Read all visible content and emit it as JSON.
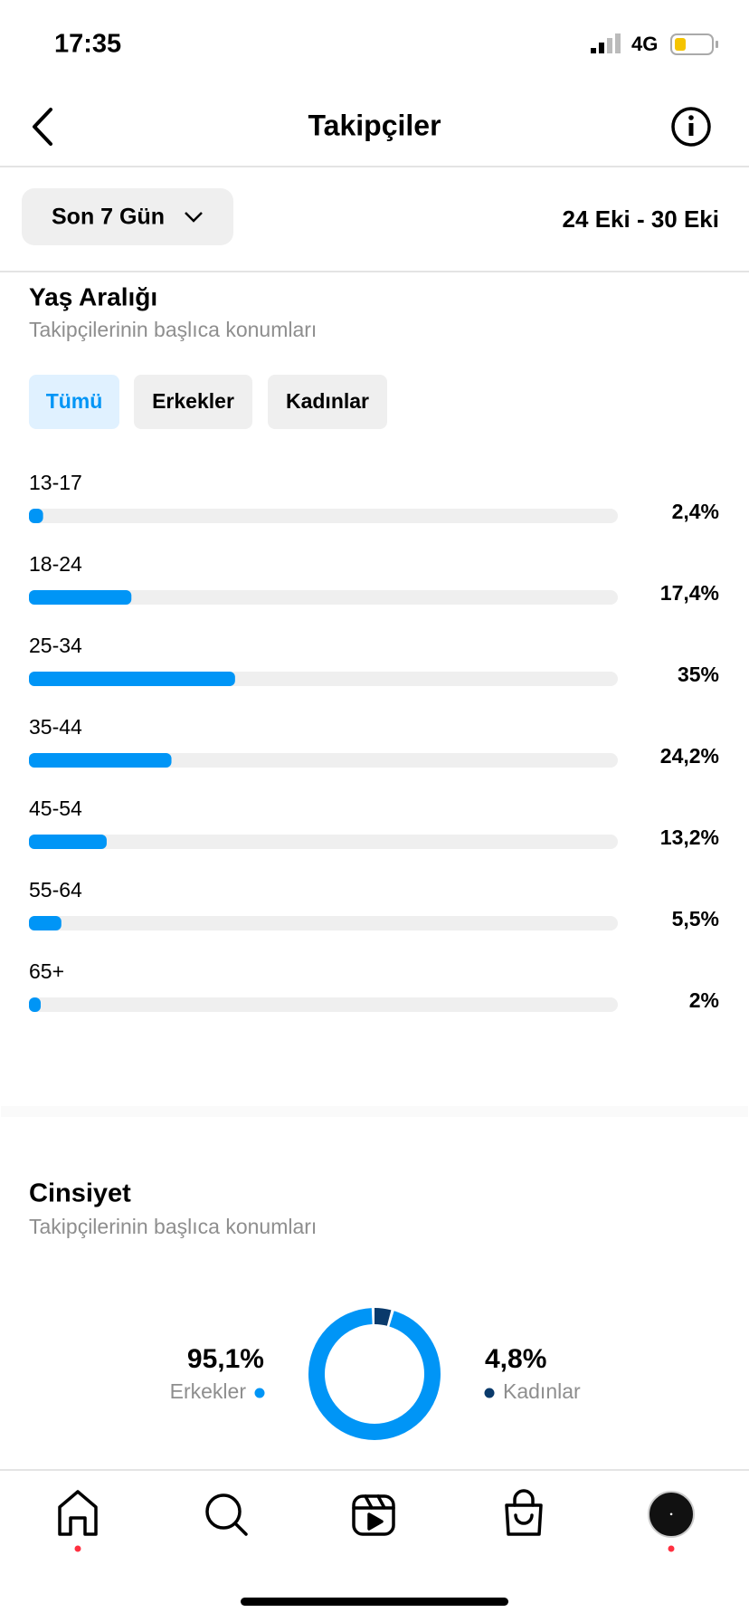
{
  "status_bar": {
    "time": "17:35",
    "network": "4G"
  },
  "header": {
    "title": "Takipçiler"
  },
  "filter": {
    "period": "Son 7 Gün",
    "date_range": "24 Eki - 30 Eki"
  },
  "age_range": {
    "title": "Yaş Aralığı",
    "subtitle": "Takipçilerinin başlıca konumları",
    "tabs": [
      "Tümü",
      "Erkekler",
      "Kadınlar"
    ],
    "categories": [
      "13-17",
      "18-24",
      "25-34",
      "35-44",
      "45-54",
      "55-64",
      "65+"
    ],
    "values": [
      2.4,
      17.4,
      35,
      24.2,
      13.2,
      5.5,
      2
    ],
    "value_labels": [
      "2,4%",
      "17,4%",
      "35%",
      "24,2%",
      "13,2%",
      "5,5%",
      "2%"
    ],
    "xlim": [
      0,
      100
    ],
    "color": "#0095f6"
  },
  "gender": {
    "title": "Cinsiyet",
    "subtitle": "Takipçilerinin başlıca konumları",
    "categories": [
      "Erkekler",
      "Kadınlar"
    ],
    "values": [
      95.1,
      4.8
    ],
    "value_labels": [
      "95,1%",
      "4,8%"
    ],
    "colors": [
      "#0095f6",
      "#0a3a6b"
    ]
  }
}
